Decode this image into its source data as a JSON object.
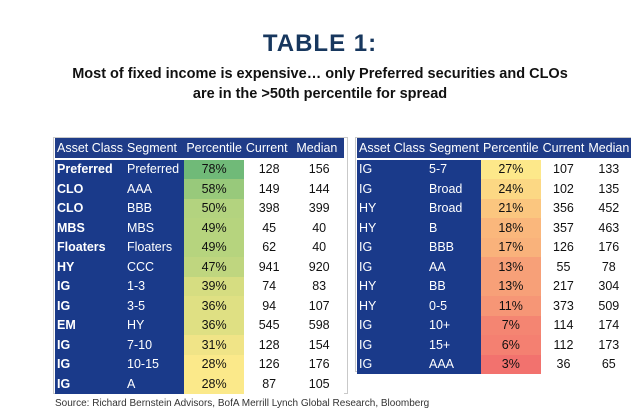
{
  "title": "TABLE 1:",
  "subtitle_line1": "Most of fixed income is expensive… only Preferred securities and CLOs",
  "subtitle_line2": "are in the >50th percentile for spread",
  "headers": {
    "left": [
      "Asset Class",
      "Segment",
      "Percentile",
      "Current",
      "Median"
    ],
    "right": [
      "Asset Class",
      "Segment",
      "Percentile",
      "Current",
      "Median"
    ]
  },
  "left_rows": [
    {
      "asset": "Preferred",
      "segment": "Preferred",
      "percentile": "78%",
      "current": "128",
      "median": "156",
      "color": "#70ba78"
    },
    {
      "asset": "CLO",
      "segment": "AAA",
      "percentile": "58%",
      "current": "149",
      "median": "144",
      "color": "#98c97b"
    },
    {
      "asset": "CLO",
      "segment": "BBB",
      "percentile": "50%",
      "current": "398",
      "median": "399",
      "color": "#b3d37f"
    },
    {
      "asset": "MBS",
      "segment": "MBS",
      "percentile": "49%",
      "current": "45",
      "median": "40",
      "color": "#b6d47e"
    },
    {
      "asset": "Floaters",
      "segment": "Floaters",
      "percentile": "49%",
      "current": "62",
      "median": "40",
      "color": "#b6d47e"
    },
    {
      "asset": "HY",
      "segment": "CCC",
      "percentile": "47%",
      "current": "941",
      "median": "920",
      "color": "#bfd67f"
    },
    {
      "asset": "IG",
      "segment": "1-3",
      "percentile": "39%",
      "current": "74",
      "median": "83",
      "color": "#d6dd81"
    },
    {
      "asset": "IG",
      "segment": "3-5",
      "percentile": "36%",
      "current": "94",
      "median": "107",
      "color": "#dfe083"
    },
    {
      "asset": "EM",
      "segment": "HY",
      "percentile": "36%",
      "current": "545",
      "median": "598",
      "color": "#dfe083"
    },
    {
      "asset": "IG",
      "segment": "7-10",
      "percentile": "31%",
      "current": "128",
      "median": "154",
      "color": "#f0e487"
    },
    {
      "asset": "IG",
      "segment": "10-15",
      "percentile": "28%",
      "current": "126",
      "median": "176",
      "color": "#fbe98a"
    },
    {
      "asset": "IG",
      "segment": "A",
      "percentile": "28%",
      "current": "87",
      "median": "105",
      "color": "#fbe98a"
    }
  ],
  "right_rows": [
    {
      "asset": "IG",
      "segment": "5-7",
      "percentile": "27%",
      "current": "107",
      "median": "133",
      "color": "#fde88a"
    },
    {
      "asset": "IG",
      "segment": "Broad",
      "percentile": "24%",
      "current": "102",
      "median": "135",
      "color": "#fcd884"
    },
    {
      "asset": "HY",
      "segment": "Broad",
      "percentile": "21%",
      "current": "356",
      "median": "452",
      "color": "#fbc67f"
    },
    {
      "asset": "HY",
      "segment": "B",
      "percentile": "18%",
      "current": "357",
      "median": "463",
      "color": "#fab77c"
    },
    {
      "asset": "IG",
      "segment": "BBB",
      "percentile": "17%",
      "current": "126",
      "median": "176",
      "color": "#f9b27b"
    },
    {
      "asset": "IG",
      "segment": "AA",
      "percentile": "13%",
      "current": "55",
      "median": "78",
      "color": "#f7a078"
    },
    {
      "asset": "HY",
      "segment": "BB",
      "percentile": "13%",
      "current": "217",
      "median": "304",
      "color": "#f7a078"
    },
    {
      "asset": "HY",
      "segment": "0-5",
      "percentile": "11%",
      "current": "373",
      "median": "509",
      "color": "#f69676"
    },
    {
      "asset": "IG",
      "segment": "10+",
      "percentile": "7%",
      "current": "114",
      "median": "174",
      "color": "#f48572"
    },
    {
      "asset": "IG",
      "segment": "15+",
      "percentile": "6%",
      "current": "112",
      "median": "173",
      "color": "#f48071"
    },
    {
      "asset": "IG",
      "segment": "AAA",
      "percentile": "3%",
      "current": "36",
      "median": "65",
      "color": "#f2726e"
    }
  ],
  "source": "Source: Richard Bernstein Advisors, BofA Merrill Lynch Global Research, Bloomberg"
}
